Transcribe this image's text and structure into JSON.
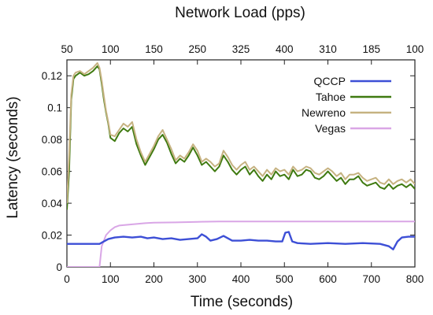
{
  "chart_data": {
    "type": "line",
    "title": "Network Load (pps)",
    "xlabel": "Time (seconds)",
    "ylabel": "Latency (seconds)",
    "xlim": [
      0,
      800
    ],
    "ylim": [
      0,
      0.13
    ],
    "x_ticks": [
      0,
      100,
      200,
      300,
      400,
      500,
      600,
      700,
      800
    ],
    "y_ticks": [
      0,
      0.02,
      0.04,
      0.06,
      0.08,
      0.1,
      0.12
    ],
    "y_tick_labels": [
      "0",
      "0.02",
      "0.04",
      "0.06",
      "0.08",
      "0.1",
      "0.12"
    ],
    "top_axis_labels": [
      "50",
      "100",
      "150",
      "250",
      "325",
      "400",
      "310",
      "185",
      "100"
    ],
    "grid": false,
    "legend_position": "top-right",
    "series": [
      {
        "name": "QCCP",
        "color": "#3d4fd6",
        "x": [
          0,
          20,
          40,
          60,
          75,
          85,
          95,
          110,
          130,
          150,
          170,
          185,
          200,
          220,
          240,
          260,
          280,
          300,
          310,
          320,
          330,
          345,
          360,
          380,
          400,
          420,
          440,
          460,
          480,
          495,
          502,
          510,
          518,
          530,
          560,
          600,
          640,
          680,
          720,
          740,
          750,
          760,
          770,
          785,
          800
        ],
        "y": [
          0.0145,
          0.0145,
          0.0145,
          0.0145,
          0.0145,
          0.016,
          0.0175,
          0.0185,
          0.019,
          0.0185,
          0.019,
          0.018,
          0.0185,
          0.0175,
          0.018,
          0.017,
          0.0175,
          0.018,
          0.0205,
          0.019,
          0.0165,
          0.0175,
          0.0195,
          0.0165,
          0.0165,
          0.017,
          0.0165,
          0.0165,
          0.016,
          0.016,
          0.0215,
          0.022,
          0.016,
          0.015,
          0.0145,
          0.015,
          0.0145,
          0.015,
          0.0145,
          0.013,
          0.011,
          0.016,
          0.0185,
          0.019,
          0.019
        ]
      },
      {
        "name": "Tahoe",
        "color": "#3f7a10",
        "x": [
          0,
          5,
          10,
          15,
          20,
          30,
          40,
          50,
          60,
          70,
          75,
          80,
          85,
          90,
          95,
          100,
          110,
          120,
          130,
          140,
          150,
          160,
          170,
          180,
          190,
          200,
          210,
          220,
          230,
          240,
          250,
          260,
          270,
          280,
          290,
          300,
          310,
          320,
          330,
          340,
          350,
          360,
          370,
          380,
          390,
          400,
          410,
          420,
          430,
          440,
          450,
          460,
          470,
          480,
          490,
          500,
          510,
          520,
          530,
          540,
          550,
          560,
          570,
          580,
          590,
          600,
          610,
          620,
          630,
          640,
          650,
          660,
          670,
          680,
          690,
          700,
          710,
          720,
          730,
          740,
          750,
          760,
          770,
          780,
          790,
          800
        ],
        "y": [
          0.036,
          0.06,
          0.105,
          0.118,
          0.12,
          0.122,
          0.12,
          0.121,
          0.123,
          0.126,
          0.124,
          0.115,
          0.105,
          0.097,
          0.09,
          0.081,
          0.079,
          0.084,
          0.087,
          0.085,
          0.088,
          0.077,
          0.07,
          0.064,
          0.069,
          0.074,
          0.08,
          0.083,
          0.078,
          0.071,
          0.065,
          0.068,
          0.066,
          0.07,
          0.075,
          0.07,
          0.064,
          0.066,
          0.063,
          0.06,
          0.063,
          0.07,
          0.066,
          0.061,
          0.058,
          0.061,
          0.063,
          0.058,
          0.061,
          0.057,
          0.054,
          0.058,
          0.055,
          0.06,
          0.057,
          0.058,
          0.055,
          0.061,
          0.057,
          0.058,
          0.061,
          0.06,
          0.056,
          0.055,
          0.057,
          0.06,
          0.057,
          0.054,
          0.056,
          0.052,
          0.055,
          0.055,
          0.057,
          0.053,
          0.051,
          0.052,
          0.053,
          0.05,
          0.049,
          0.052,
          0.049,
          0.051,
          0.052,
          0.05,
          0.052,
          0.049
        ]
      },
      {
        "name": "Newreno",
        "color": "#c6b281",
        "x": [
          0,
          5,
          10,
          15,
          20,
          30,
          40,
          50,
          60,
          70,
          75,
          80,
          85,
          90,
          95,
          100,
          110,
          120,
          130,
          140,
          150,
          160,
          170,
          180,
          190,
          200,
          210,
          220,
          230,
          240,
          250,
          260,
          270,
          280,
          290,
          300,
          310,
          320,
          330,
          340,
          350,
          360,
          370,
          380,
          390,
          400,
          410,
          420,
          430,
          440,
          450,
          460,
          470,
          480,
          490,
          500,
          510,
          520,
          530,
          540,
          550,
          560,
          570,
          580,
          590,
          600,
          610,
          620,
          630,
          640,
          650,
          660,
          670,
          680,
          690,
          700,
          710,
          720,
          730,
          740,
          750,
          760,
          770,
          780,
          790,
          800
        ],
        "y": [
          0.04,
          0.07,
          0.108,
          0.12,
          0.122,
          0.123,
          0.121,
          0.123,
          0.125,
          0.128,
          0.125,
          0.117,
          0.107,
          0.098,
          0.091,
          0.083,
          0.082,
          0.086,
          0.09,
          0.088,
          0.091,
          0.08,
          0.072,
          0.066,
          0.071,
          0.076,
          0.082,
          0.086,
          0.08,
          0.074,
          0.067,
          0.07,
          0.068,
          0.072,
          0.077,
          0.073,
          0.066,
          0.068,
          0.066,
          0.063,
          0.065,
          0.073,
          0.069,
          0.064,
          0.061,
          0.064,
          0.066,
          0.061,
          0.063,
          0.06,
          0.057,
          0.061,
          0.058,
          0.062,
          0.06,
          0.061,
          0.058,
          0.063,
          0.06,
          0.061,
          0.063,
          0.062,
          0.059,
          0.058,
          0.06,
          0.062,
          0.06,
          0.057,
          0.059,
          0.055,
          0.058,
          0.058,
          0.059,
          0.056,
          0.054,
          0.055,
          0.056,
          0.053,
          0.052,
          0.055,
          0.052,
          0.054,
          0.055,
          0.053,
          0.055,
          0.052
        ]
      },
      {
        "name": "Vegas",
        "color": "#d9a6e6",
        "x": [
          0,
          20,
          40,
          60,
          75,
          80,
          90,
          100,
          110,
          120,
          140,
          160,
          180,
          200,
          250,
          300,
          350,
          400,
          450,
          500,
          550,
          600,
          650,
          700,
          750,
          800
        ],
        "y": [
          0.0,
          0.0,
          0.0,
          0.0,
          0.0,
          0.013,
          0.02,
          0.023,
          0.025,
          0.026,
          0.0265,
          0.027,
          0.0275,
          0.0278,
          0.028,
          0.0283,
          0.0285,
          0.0285,
          0.0285,
          0.0285,
          0.0285,
          0.0285,
          0.0285,
          0.0285,
          0.0285,
          0.0285
        ]
      }
    ]
  }
}
